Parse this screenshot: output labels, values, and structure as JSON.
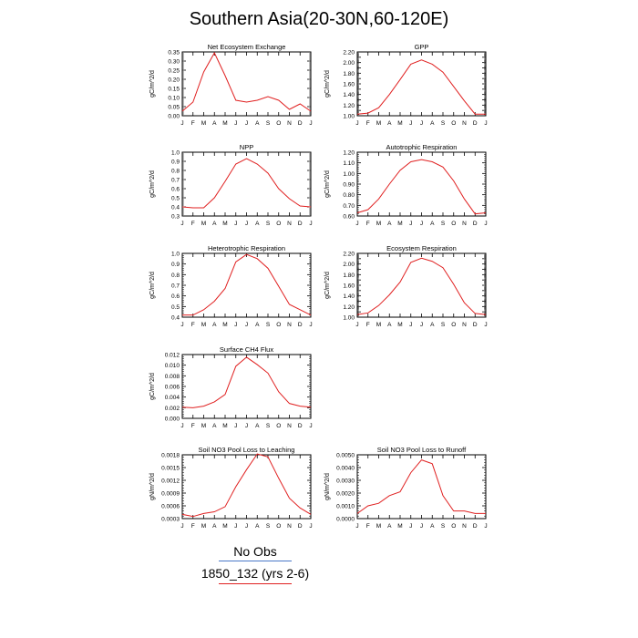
{
  "page": {
    "title": "Southern Asia(20-30N,60-120E)"
  },
  "legend": {
    "items": [
      {
        "label": "No Obs",
        "color": "#4a78c8"
      },
      {
        "label": "1850_132 (yrs 2-6)",
        "color": "#e02020"
      }
    ]
  },
  "chart_data": [
    {
      "type": "line",
      "title": "Net Ecosystem Exchange",
      "ylabel": "gC/m^2/d",
      "categories": [
        "J",
        "F",
        "M",
        "A",
        "M",
        "J",
        "J",
        "A",
        "S",
        "O",
        "N",
        "D",
        "J"
      ],
      "ylim": [
        0.0,
        0.35
      ],
      "yticks": [
        0.0,
        0.05,
        0.1,
        0.15,
        0.2,
        0.25,
        0.3,
        0.35
      ],
      "yticklabels": [
        "0.00",
        "0.05",
        "0.10",
        "0.15",
        "0.20",
        "0.25",
        "0.30",
        "0.35"
      ],
      "series": [
        {
          "color": "#e02020",
          "values": [
            0.025,
            0.075,
            0.24,
            0.345,
            0.22,
            0.085,
            0.075,
            0.085,
            0.105,
            0.085,
            0.035,
            0.065,
            0.025
          ]
        }
      ]
    },
    {
      "type": "line",
      "title": "GPP",
      "ylabel": "gC/m^2/d",
      "categories": [
        "J",
        "F",
        "M",
        "A",
        "M",
        "J",
        "J",
        "A",
        "S",
        "O",
        "N",
        "D",
        "J"
      ],
      "ylim": [
        1.0,
        2.2
      ],
      "yticks": [
        1.0,
        1.1,
        1.2,
        1.3,
        1.4,
        1.5,
        1.6,
        1.7,
        1.8,
        1.9,
        2.0,
        2.1,
        2.2
      ],
      "yticklabels": [
        "1.00",
        "",
        "1.20",
        "",
        "1.40",
        "",
        "1.60",
        "",
        "1.80",
        "",
        "2.00",
        "",
        "2.20"
      ],
      "series": [
        {
          "color": "#e02020",
          "values": [
            1.03,
            1.05,
            1.15,
            1.4,
            1.68,
            1.97,
            2.05,
            1.97,
            1.82,
            1.55,
            1.28,
            1.03,
            1.03
          ]
        }
      ]
    },
    {
      "type": "line",
      "title": "NPP",
      "ylabel": "gC/m^2/d",
      "categories": [
        "J",
        "F",
        "M",
        "A",
        "M",
        "J",
        "J",
        "A",
        "S",
        "O",
        "N",
        "D",
        "J"
      ],
      "ylim": [
        0.3,
        1.0
      ],
      "yticks": [
        0.3,
        0.4,
        0.5,
        0.6,
        0.7,
        0.8,
        0.9,
        1.0
      ],
      "yticklabels": [
        "0.3",
        "0.4",
        "0.5",
        "0.6",
        "0.7",
        "0.8",
        "0.9",
        "1.0"
      ],
      "series": [
        {
          "color": "#e02020",
          "values": [
            0.4,
            0.39,
            0.39,
            0.5,
            0.68,
            0.87,
            0.93,
            0.87,
            0.77,
            0.6,
            0.49,
            0.41,
            0.4
          ]
        }
      ]
    },
    {
      "type": "line",
      "title": "Autotrophic Respiration",
      "ylabel": "gC/m^2/d",
      "categories": [
        "J",
        "F",
        "M",
        "A",
        "M",
        "J",
        "J",
        "A",
        "S",
        "O",
        "N",
        "D",
        "J"
      ],
      "ylim": [
        0.6,
        1.2
      ],
      "yticks": [
        0.6,
        0.7,
        0.8,
        0.9,
        1.0,
        1.1,
        1.2
      ],
      "yticklabels": [
        "0.60",
        "0.70",
        "0.80",
        "0.90",
        "1.00",
        "1.10",
        "1.20"
      ],
      "series": [
        {
          "color": "#e02020",
          "values": [
            0.63,
            0.66,
            0.76,
            0.9,
            1.03,
            1.11,
            1.13,
            1.11,
            1.06,
            0.93,
            0.76,
            0.62,
            0.63
          ]
        }
      ]
    },
    {
      "type": "line",
      "title": "Heterotrophic Respiration",
      "ylabel": "gC/m^2/d",
      "categories": [
        "J",
        "F",
        "M",
        "A",
        "M",
        "J",
        "J",
        "A",
        "S",
        "O",
        "N",
        "D",
        "J"
      ],
      "ylim": [
        0.4,
        1.0
      ],
      "yticks": [
        0.4,
        0.5,
        0.6,
        0.7,
        0.8,
        0.9,
        1.0
      ],
      "yticklabels": [
        "0.4",
        "0.5",
        "0.6",
        "0.7",
        "0.8",
        "0.9",
        "1.0"
      ],
      "series": [
        {
          "color": "#e02020",
          "values": [
            0.42,
            0.42,
            0.47,
            0.55,
            0.67,
            0.92,
            0.99,
            0.95,
            0.86,
            0.69,
            0.52,
            0.47,
            0.42
          ]
        }
      ]
    },
    {
      "type": "line",
      "title": "Ecosystem Respiration",
      "ylabel": "gC/m^2/d",
      "categories": [
        "J",
        "F",
        "M",
        "A",
        "M",
        "J",
        "J",
        "A",
        "S",
        "O",
        "N",
        "D",
        "J"
      ],
      "ylim": [
        1.0,
        2.2
      ],
      "yticks": [
        1.0,
        1.1,
        1.2,
        1.3,
        1.4,
        1.5,
        1.6,
        1.7,
        1.8,
        1.9,
        2.0,
        2.1,
        2.2
      ],
      "yticklabels": [
        "1.00",
        "",
        "1.20",
        "",
        "1.40",
        "",
        "1.60",
        "",
        "1.80",
        "",
        "2.00",
        "",
        "2.20"
      ],
      "series": [
        {
          "color": "#e02020",
          "values": [
            1.05,
            1.08,
            1.22,
            1.42,
            1.66,
            2.03,
            2.11,
            2.05,
            1.93,
            1.62,
            1.27,
            1.07,
            1.05
          ]
        }
      ]
    },
    {
      "type": "line",
      "title": "Surface CH4 Flux",
      "ylabel": "gC/m^2/d",
      "categories": [
        "J",
        "F",
        "M",
        "A",
        "M",
        "J",
        "J",
        "A",
        "S",
        "O",
        "N",
        "D",
        "J"
      ],
      "ylim": [
        0.0,
        0.012
      ],
      "yticks": [
        0.0,
        0.002,
        0.004,
        0.006,
        0.008,
        0.01,
        0.012
      ],
      "yticklabels": [
        "0.000",
        "0.002",
        "0.004",
        "0.006",
        "0.008",
        "0.010",
        "0.012"
      ],
      "series": [
        {
          "color": "#e02020",
          "values": [
            0.0021,
            0.002,
            0.0023,
            0.0031,
            0.0045,
            0.0098,
            0.0115,
            0.0101,
            0.0085,
            0.005,
            0.0028,
            0.0023,
            0.0021
          ]
        }
      ]
    },
    {
      "type": "line",
      "title": "Soil NO3 Pool Loss to Leaching",
      "ylabel": "gN/m^2/d",
      "categories": [
        "J",
        "F",
        "M",
        "A",
        "M",
        "J",
        "J",
        "A",
        "S",
        "O",
        "N",
        "D",
        "J"
      ],
      "ylim": [
        0.0003,
        0.0018
      ],
      "yticks": [
        0.0003,
        0.0006,
        0.0009,
        0.0012,
        0.0015,
        0.0018
      ],
      "yticklabels": [
        "0.0003",
        "0.0006",
        "0.0009",
        "0.0012",
        "0.0015",
        "0.0018"
      ],
      "series": [
        {
          "color": "#e02020",
          "values": [
            0.0004,
            0.00035,
            0.00042,
            0.00046,
            0.00058,
            0.00105,
            0.00145,
            0.00182,
            0.00175,
            0.00125,
            0.00078,
            0.00055,
            0.0004
          ]
        }
      ]
    },
    {
      "type": "line",
      "title": "Soil NO3 Pool Loss to Runoff",
      "ylabel": "gN/m^2/d",
      "categories": [
        "J",
        "F",
        "M",
        "A",
        "M",
        "J",
        "J",
        "A",
        "S",
        "O",
        "N",
        "D",
        "J"
      ],
      "ylim": [
        0.0,
        0.005
      ],
      "yticks": [
        0.0,
        0.001,
        0.002,
        0.003,
        0.004,
        0.005
      ],
      "yticklabels": [
        "0.0000",
        "0.0010",
        "0.0020",
        "0.0030",
        "0.0040",
        "0.0050"
      ],
      "series": [
        {
          "color": "#e02020",
          "values": [
            0.0004,
            0.001,
            0.0012,
            0.0018,
            0.0021,
            0.0036,
            0.0046,
            0.0043,
            0.0018,
            0.0006,
            0.0006,
            0.0004,
            0.0004
          ]
        }
      ]
    }
  ]
}
